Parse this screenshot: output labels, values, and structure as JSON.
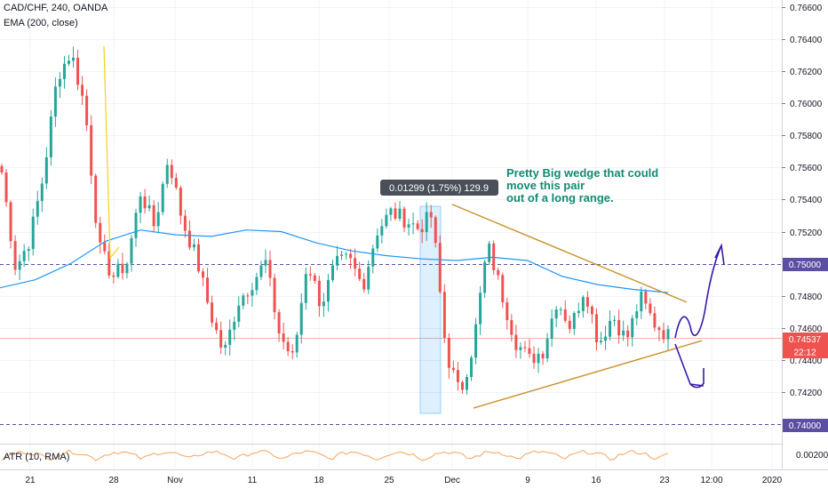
{
  "header": {
    "symbol": "CAD/CHF, 240, OANDA",
    "indicator": "EMA (200, close)",
    "atr_label": "ATR (10, RMA)"
  },
  "measure_label": "0.01299 (1.75%) 129.9",
  "annotation": {
    "line1": "Pretty Big wedge that could",
    "line2": "move this pair",
    "line3": "out of a long range."
  },
  "badges": {
    "level_750": "0.75000",
    "last_price": "0.74537",
    "countdown": "22:12",
    "level_740": "0.74000",
    "atr_value": "0.00200"
  },
  "colors": {
    "up": "#26a69a",
    "down": "#ef5350",
    "ema": "#2196f3",
    "wedge": "#c9912b",
    "dashed": "#5c4ea3",
    "atr": "#f7a35c",
    "annotation": "#138a73",
    "arrow": "#3a1aa8"
  },
  "chart_data": {
    "type": "candlestick",
    "y_ticks": [
      "0.76600",
      "0.76400",
      "0.76200",
      "0.76000",
      "0.75800",
      "0.75600",
      "0.75400",
      "0.75200",
      "0.74800",
      "0.74600",
      "0.74400",
      "0.74200"
    ],
    "y_tick_values": [
      0.766,
      0.764,
      0.762,
      0.76,
      0.758,
      0.756,
      0.754,
      0.752,
      0.748,
      0.746,
      0.744,
      0.742
    ],
    "ylim": [
      0.7392,
      0.767
    ],
    "x_labels": [
      "21",
      "28",
      "Nov",
      "11",
      "18",
      "25",
      "Dec",
      "9",
      "16",
      "23",
      "12:00",
      "2020"
    ],
    "horizontal_levels": [
      0.75,
      0.74
    ],
    "last_price": 0.74537,
    "ema": [
      0.7485,
      0.749,
      0.75,
      0.7514,
      0.7521,
      0.7518,
      0.7517,
      0.7521,
      0.752,
      0.7513,
      0.7508,
      0.7505,
      0.7503,
      0.7502,
      0.7504,
      0.7502,
      0.7492,
      0.7487,
      0.7484,
      0.7482
    ],
    "price_path": [
      0.7557,
      0.7497,
      0.7515,
      0.7555,
      0.7617,
      0.7632,
      0.7597,
      0.751,
      0.7492,
      0.75,
      0.7545,
      0.7523,
      0.7567,
      0.7527,
      0.7504,
      0.747,
      0.7443,
      0.7476,
      0.7488,
      0.7501,
      0.7456,
      0.744,
      0.7502,
      0.7474,
      0.7499,
      0.7503,
      0.7486,
      0.752,
      0.7532,
      0.7528,
      0.7522,
      0.753,
      0.7445,
      0.7418,
      0.7451,
      0.7512,
      0.7482,
      0.7452,
      0.744,
      0.7446,
      0.7478,
      0.746,
      0.7486,
      0.745,
      0.7468,
      0.7452,
      0.7479,
      0.7463,
      0.7455
    ]
  }
}
